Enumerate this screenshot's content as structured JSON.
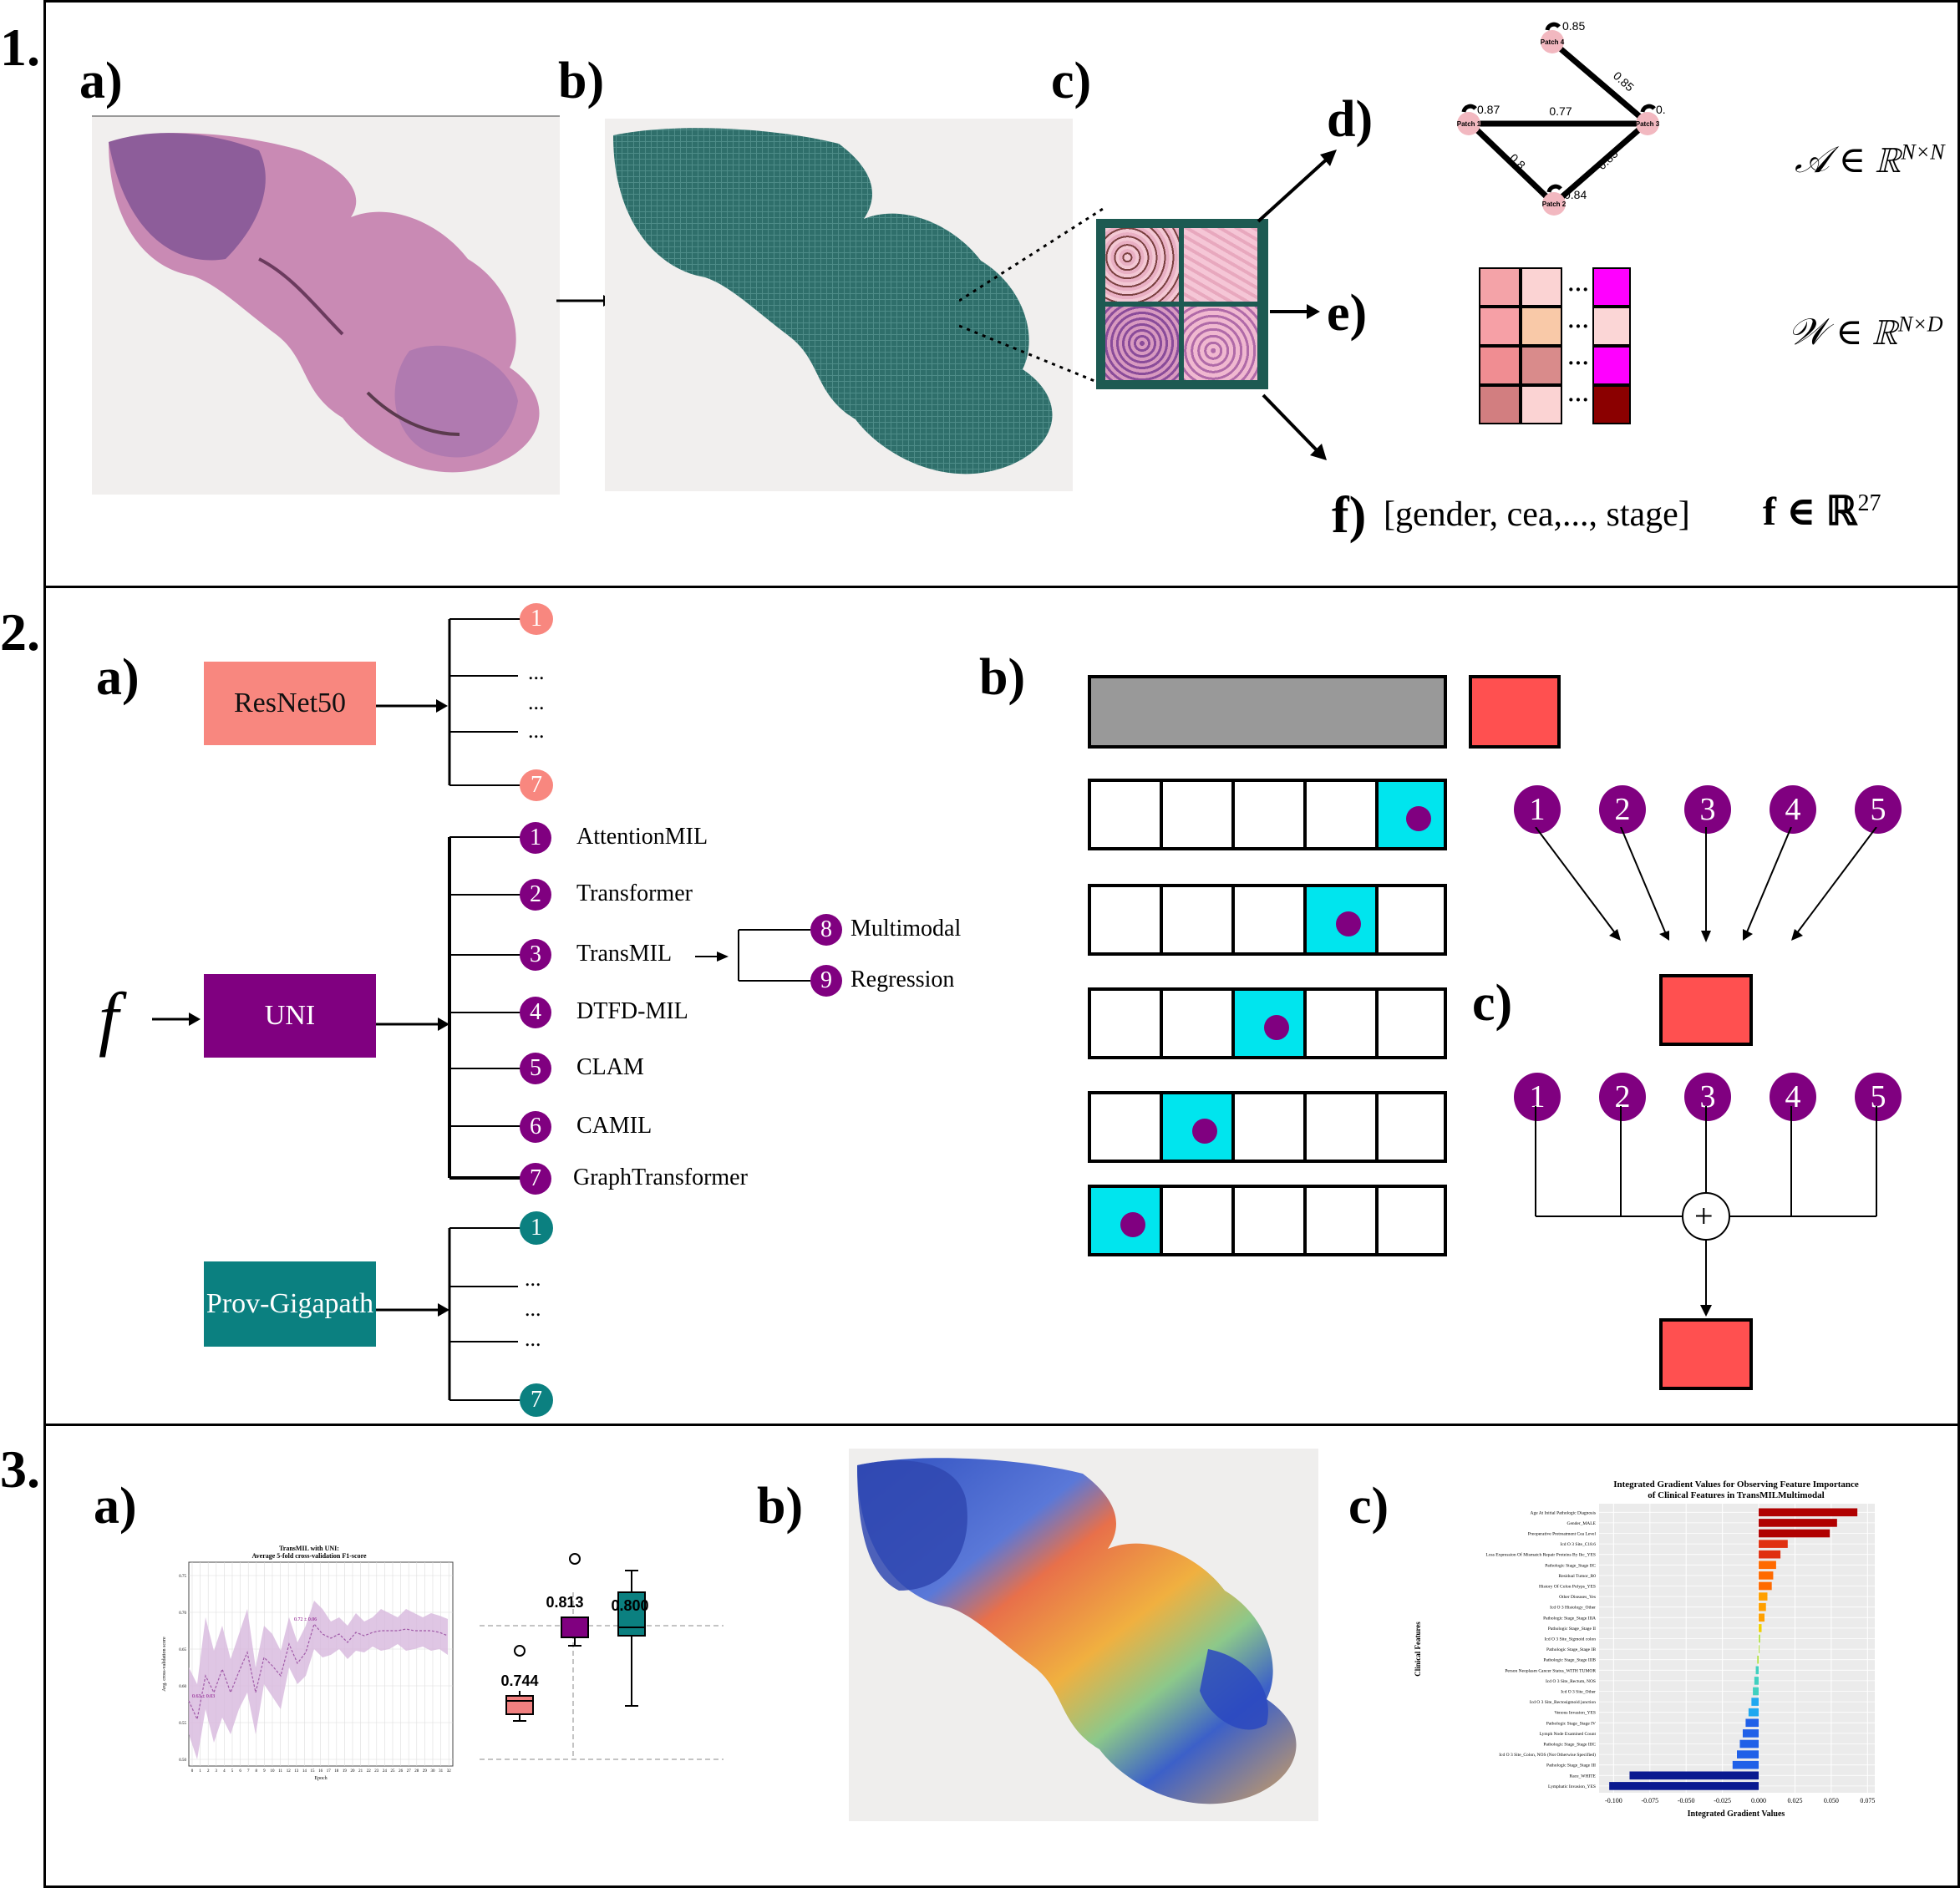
{
  "sections": {
    "s1": "1.",
    "s2": "2.",
    "s3": "3."
  },
  "panel1": {
    "labels": {
      "a": "a)",
      "b": "b)",
      "c": "c)",
      "d": "d)",
      "e": "e)",
      "f": "f)"
    },
    "graph": {
      "nodes": [
        "Patch 4",
        "Patch 1",
        "Patch 3",
        "Patch 2"
      ],
      "node_values": [
        "0.85",
        "0.87",
        "0.",
        "0.84"
      ],
      "edge_labels": [
        "0.85",
        "0.77",
        "0.8",
        "0.83"
      ]
    },
    "math": {
      "adjacency": "𝒜 ∈ ℝ",
      "adjacency_sup": "N×N",
      "weights": "𝒲 ∈ ℝ",
      "weights_sup": "N×D",
      "features": "f ∈ ℝ",
      "features_sup": "27"
    },
    "clinical_vector": "[gender, cea,..., stage]",
    "heatmap_colors": {
      "grid": [
        "#f4a3a8",
        "#fbd3d3",
        "#f6a0a6",
        "#f9c9a8",
        "#f08d92",
        "#d98b8b",
        "#d27e80",
        "#fbd3d3"
      ],
      "column": [
        "#ff00ff",
        "#fbd6d6",
        "#ff00ff",
        "#8b0000"
      ]
    }
  },
  "panel2": {
    "labels": {
      "a": "a)",
      "b": "b)",
      "c": "c)"
    },
    "f_symbol": "f",
    "models": {
      "resnet": {
        "label": "ResNet50",
        "color": "#f8877f",
        "first": "1",
        "last": "7",
        "circle_color": "#f8877f"
      },
      "uni": {
        "label": "UNI",
        "color": "#800080",
        "circle_color": "#800080"
      },
      "prov": {
        "label": "Prov-Gigapath",
        "color": "#0b8080",
        "first": "1",
        "last": "7",
        "circle_color": "#0b8080"
      }
    },
    "dots": [
      "...",
      "...",
      "..."
    ],
    "uni_methods": [
      {
        "num": "1",
        "name": "AttentionMIL"
      },
      {
        "num": "2",
        "name": "Transformer"
      },
      {
        "num": "3",
        "name": "TransMIL"
      },
      {
        "num": "4",
        "name": "DTFD-MIL"
      },
      {
        "num": "5",
        "name": "CLAM"
      },
      {
        "num": "6",
        "name": "CAMIL"
      },
      {
        "num": "7",
        "name": "GraphTransformer"
      }
    ],
    "transmil_variants": [
      {
        "num": "8",
        "name": "Multimodal"
      },
      {
        "num": "9",
        "name": "Regression"
      }
    ],
    "cv_highlight": "#00e5ee",
    "ensemble_inputs": [
      "1",
      "2",
      "3",
      "4",
      "5"
    ],
    "plus": "+"
  },
  "panel3": {
    "labels": {
      "a": "a)",
      "b": "b)",
      "c": "c)"
    },
    "line_chart": {
      "title_line1": "TransMIL with UNI:",
      "title_line2": "Average 5-fold cross-validation F1-score",
      "xlabel": "Epoch",
      "ylabel": "Avg. cross-validation score",
      "start_annot": "0.63 ± 0.03",
      "peak_annot": "0.72 ± 0.06",
      "yticks": [
        "0.75",
        "0.70",
        "0.65",
        "0.60",
        "0.55",
        "0.50"
      ],
      "xticks": [
        "0",
        "1",
        "2",
        "3",
        "4",
        "5",
        "6",
        "7",
        "8",
        "9",
        "10",
        "11",
        "12",
        "13",
        "14",
        "15",
        "16",
        "17",
        "18",
        "19",
        "20",
        "21",
        "22",
        "23",
        "24",
        "25",
        "26",
        "27",
        "28",
        "29",
        "30",
        "31",
        "32"
      ]
    },
    "boxplot": {
      "labels": [
        "0.744",
        "0.813",
        "0.800"
      ],
      "colors": [
        "#f08080",
        "#800080",
        "#0b8080"
      ]
    }
  },
  "chart_data": {
    "type": "bar",
    "title": "Integrated Gradient Values for Observing Feature Importance of Clinical Features in TransMILMultimodal",
    "xlabel": "Integrated Gradient Values",
    "ylabel": "Clinical Features",
    "xlim": [
      -0.11,
      0.08
    ],
    "xticks": [
      "-0.100",
      "-0.075",
      "-0.050",
      "-0.025",
      "0.000",
      "0.025",
      "0.050",
      "0.075"
    ],
    "orientation": "horizontal",
    "categories": [
      "Age At Initial Pathologic Diagnosis",
      "Gender_MALE",
      "Preoperative Pretreatment Cea Level",
      "Icd O 3 Site_C18.6",
      "Loss Expression Of Mismatch Repair Proteins By Ihc_YES",
      "Pathologic Stage_Stage IIC",
      "Residual Tumor_R0",
      "History Of Colon Polyps_YES",
      "Other Diseases_Yes",
      "Icd O 3 Histology_Other",
      "Pathologic Stage_Stage IIIA",
      "Pathologic Stage_Stage II",
      "Icd O 3 Site_Sigmoid colon",
      "Pathologic Stage_Stage IB",
      "Pathologic Stage_Stage IIIB",
      "Person Neoplasm Cancer Status_WITH TUMOR",
      "Icd O 3 Site_Rectum, NOS",
      "Icd O 3 Site_Other",
      "Icd O 3 Site_Rectosigmoid junction",
      "Venous Invasion_YES",
      "Pathologic Stage_Stage IV",
      "Lymph Node Examined Count",
      "Pathologic Stage_Stage IIIC",
      "Icd O 3 Site_Colon, NOS (Not Otherwise Specified)",
      "Pathologic Stage_Stage III",
      "Race_WHITE",
      "Lymphatic Invasion_YES"
    ],
    "values": [
      0.068,
      0.054,
      0.049,
      0.02,
      0.015,
      0.012,
      0.01,
      0.009,
      0.006,
      0.005,
      0.004,
      0.002,
      0.001,
      0.0,
      -0.001,
      -0.002,
      -0.003,
      -0.004,
      -0.005,
      -0.007,
      -0.009,
      -0.011,
      -0.013,
      -0.015,
      -0.018,
      -0.089,
      -0.103
    ]
  }
}
